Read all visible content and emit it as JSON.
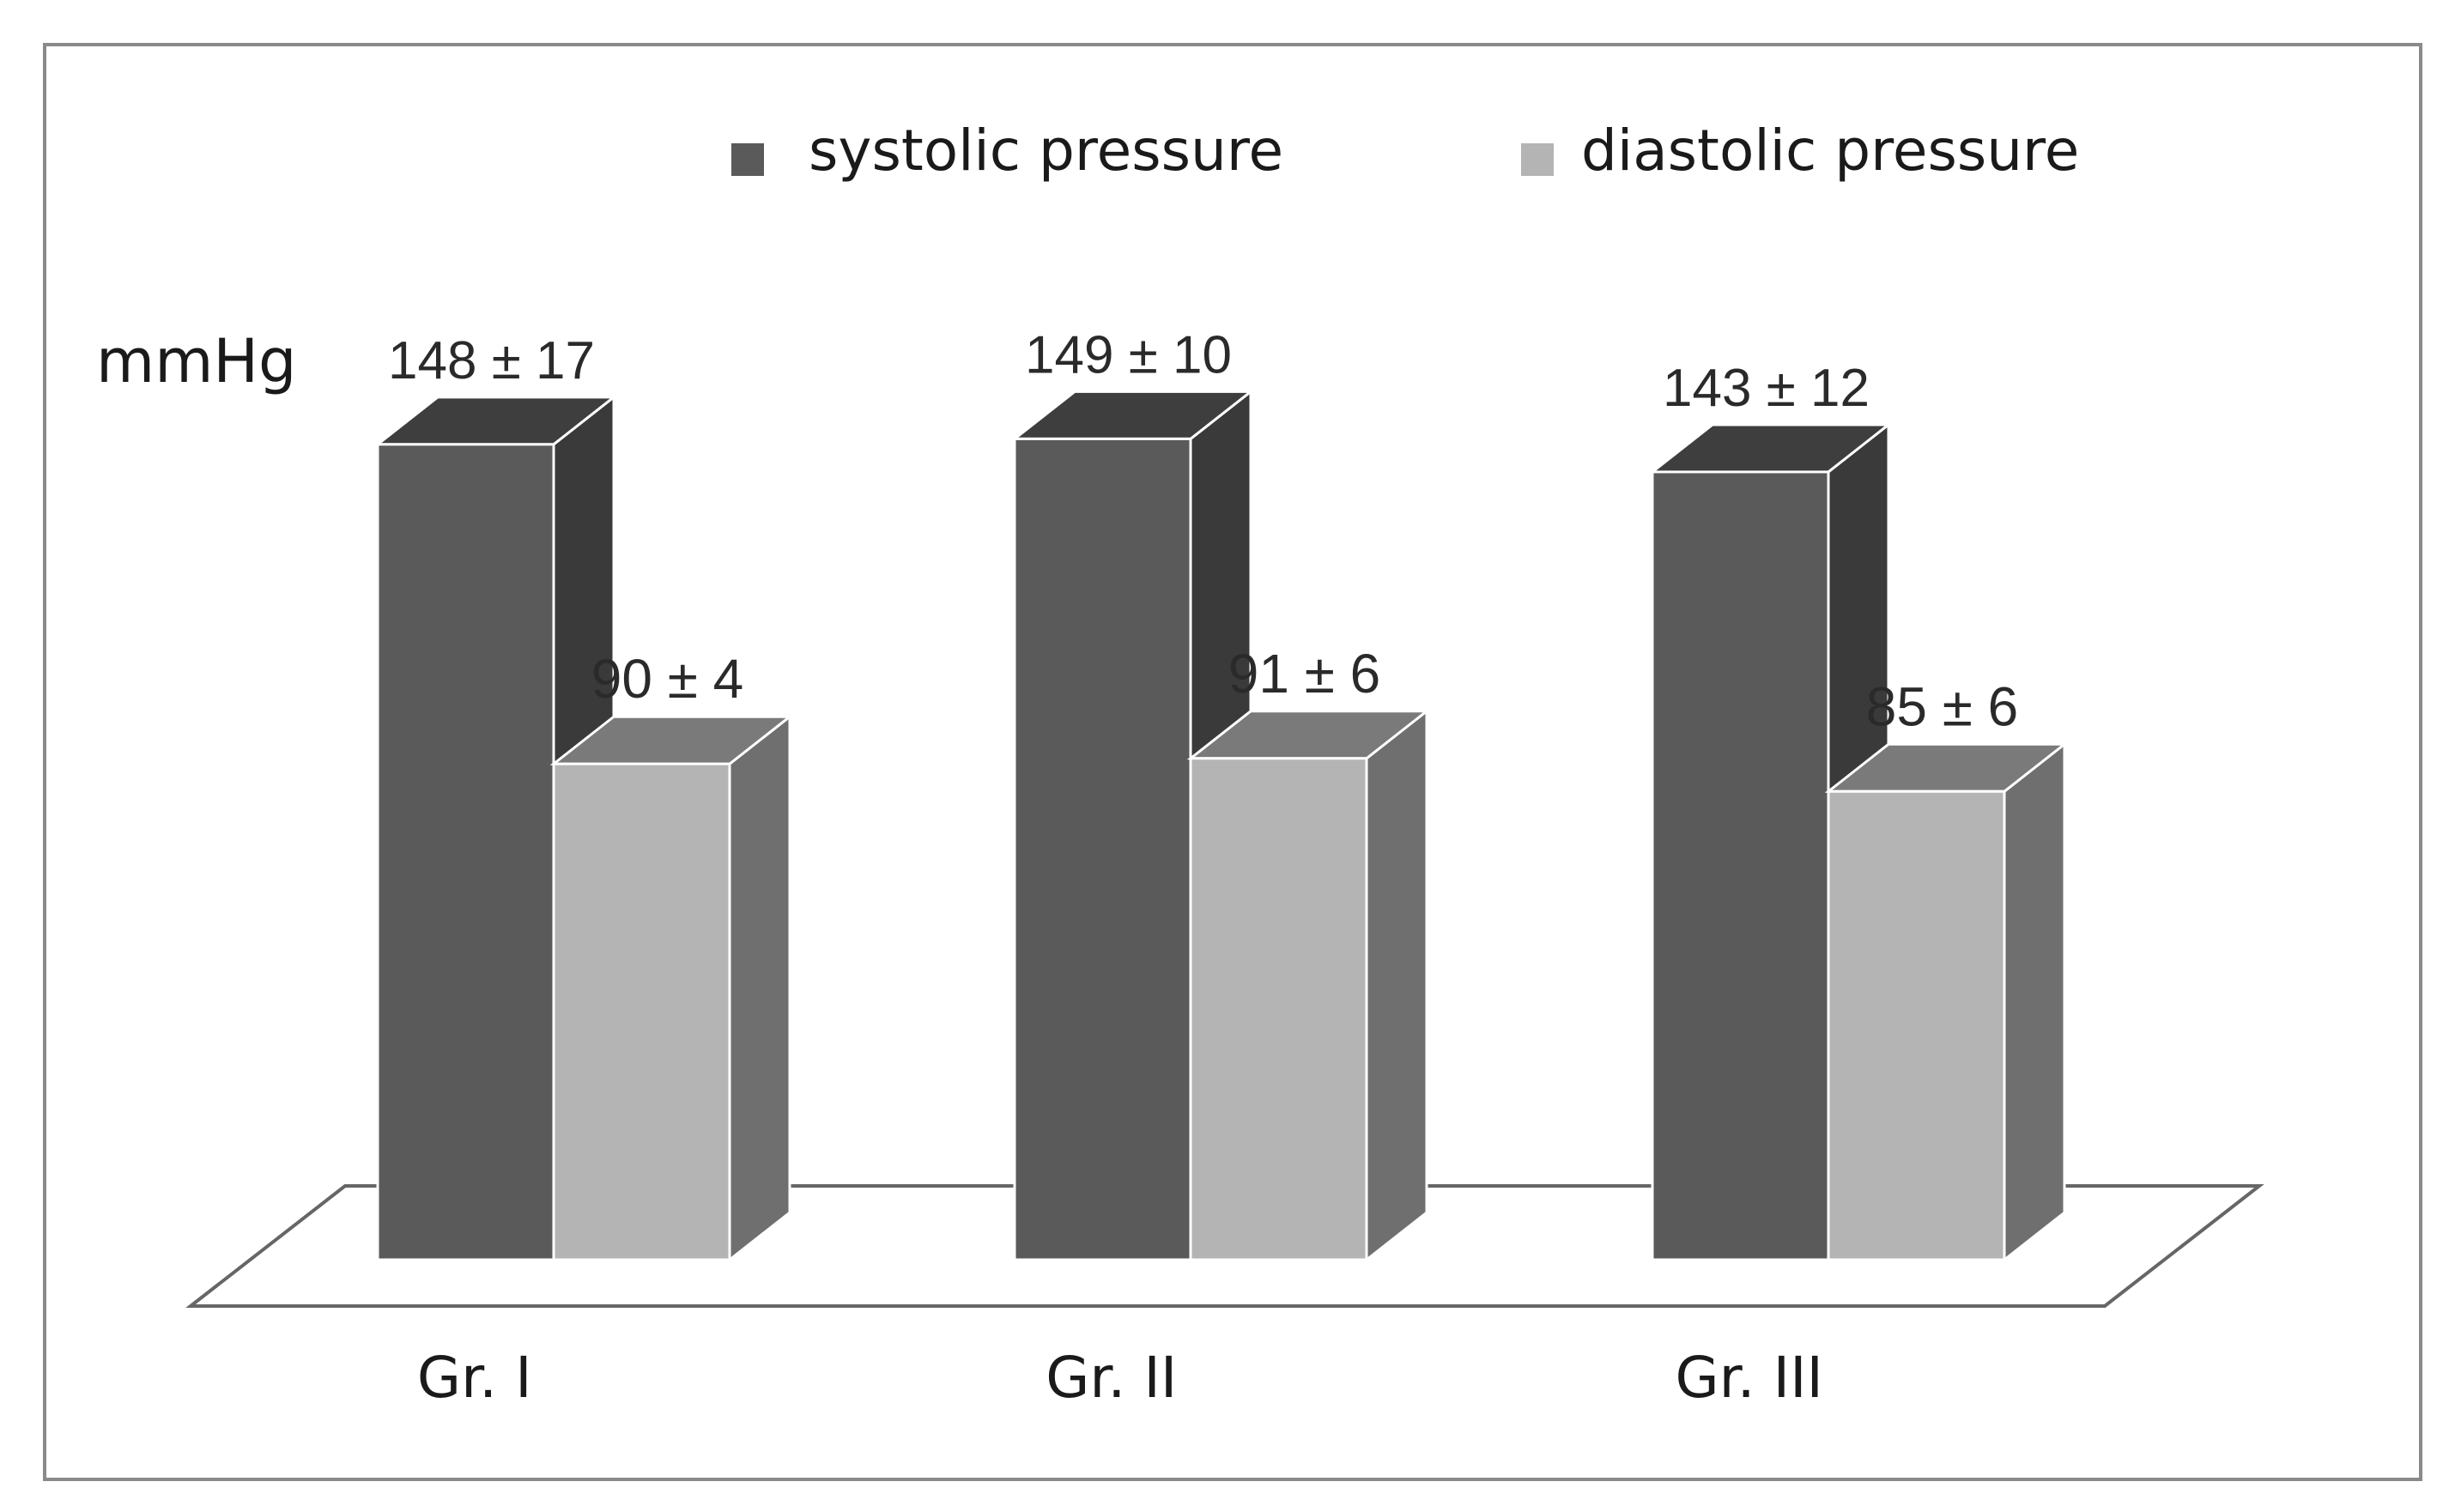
{
  "chart_data": {
    "type": "bar",
    "title": "",
    "ylabel": "mmHg",
    "xlabel": "",
    "ylim": [
      0,
      150
    ],
    "grid": false,
    "legend_position": "top",
    "categories": [
      "Gr. I",
      "Gr. II",
      "Gr. III"
    ],
    "series": [
      {
        "name": "systolic pressure",
        "values": [
          148,
          149,
          143
        ],
        "labels": [
          "148 ± 17",
          "149 ± 10",
          "143 ± 12"
        ],
        "color": "#5a5a5a",
        "side_color": "#3a3a3a",
        "top_color": "#3e3e3e"
      },
      {
        "name": "diastolic pressure",
        "values": [
          90,
          91,
          85
        ],
        "labels": [
          "90 ± 4",
          "91 ± 6",
          "85 ± 6"
        ],
        "color": "#b4b4b4",
        "side_color": "#6f6f6f",
        "top_color": "#7a7a7a"
      }
    ]
  }
}
